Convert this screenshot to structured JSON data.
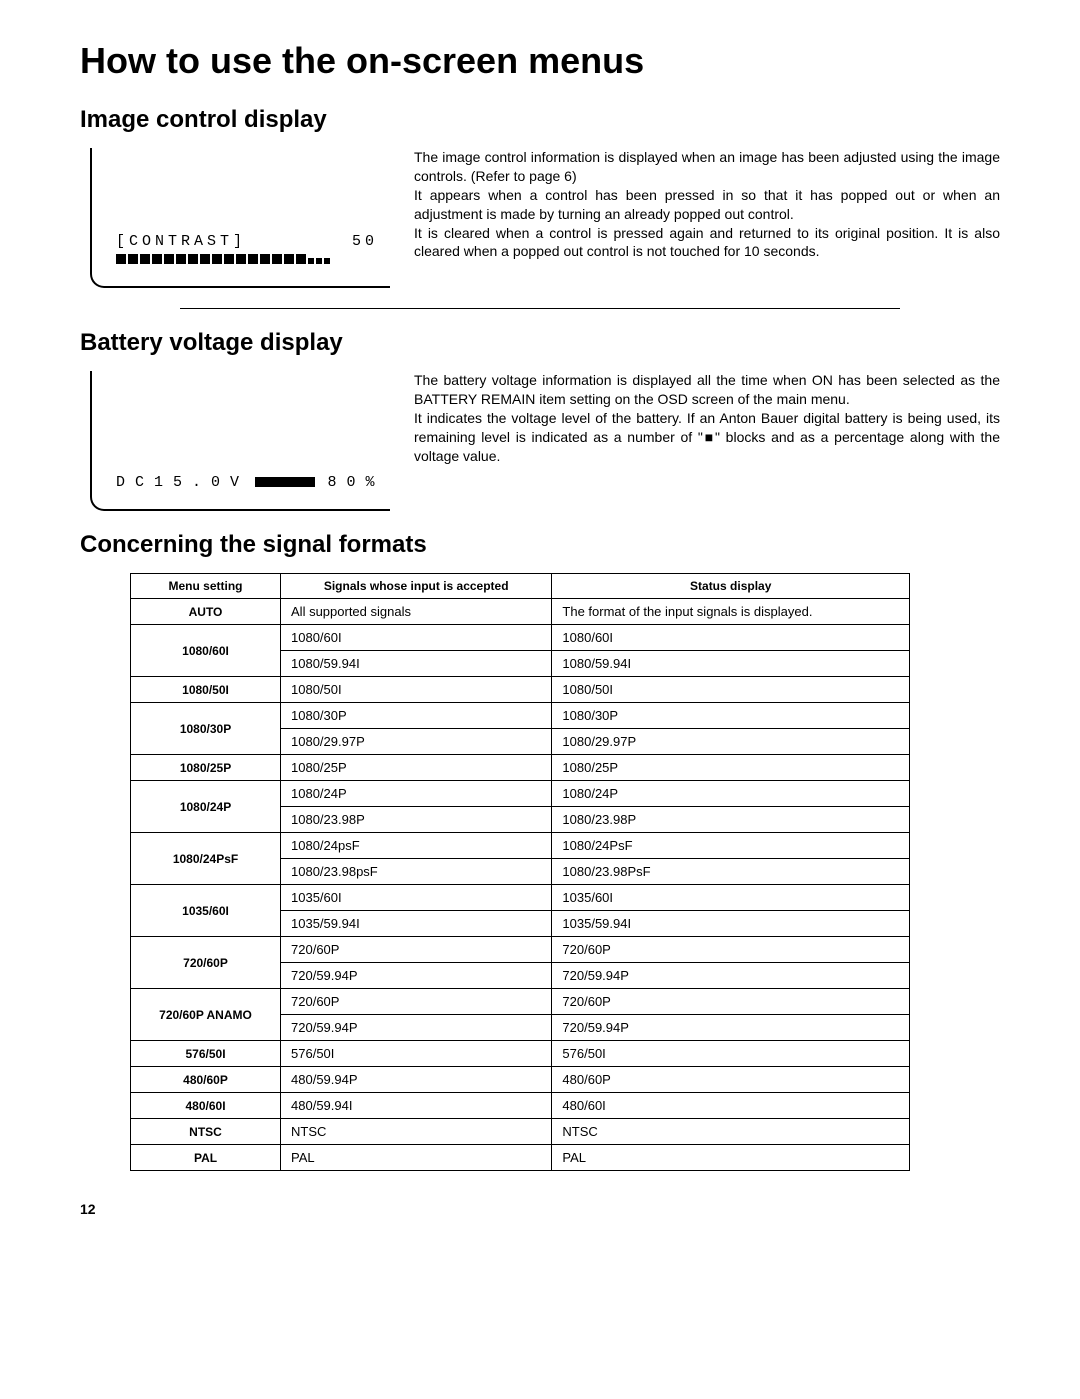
{
  "page": {
    "title": "How to use the on-screen menus",
    "number": "12"
  },
  "image_control": {
    "heading": "Image control display",
    "osd_label": "[CONTRAST]",
    "osd_value": "50",
    "filled_big_bars": 16,
    "small_bars": 3,
    "para1": "The image control information is displayed when an image has been adjusted using the image controls.  (Refer to page 6)",
    "para2": "It appears when a control has been pressed in so that it has popped out or when an adjustment is made by turning an already popped out control.",
    "para3": "It is cleared when a control is pressed again and returned to its original position.  It is also cleared when a popped out control is not touched for 10 seconds."
  },
  "battery": {
    "heading": "Battery voltage display",
    "osd_prefix": "DC15.0V",
    "osd_blocks": 6,
    "osd_suffix": "80%",
    "para1": "The battery voltage information is displayed all the time when ON has been selected as the BATTERY REMAIN item setting on the OSD screen of the main menu.",
    "para2": "It indicates the voltage level of the battery.  If an Anton Bauer digital battery is being used, its remaining level is indicated as a number of \"■\" blocks and as a percentage along with the voltage value."
  },
  "formats": {
    "heading": "Concerning the signal formats",
    "columns": [
      "Menu setting",
      "Signals whose input is accepted",
      "Status display"
    ],
    "rows": [
      {
        "menu": "AUTO",
        "span": 1,
        "cells": [
          [
            "All supported signals",
            "The format of the input signals is displayed."
          ]
        ]
      },
      {
        "menu": "1080/60I",
        "span": 2,
        "cells": [
          [
            "1080/60I",
            "1080/60I"
          ],
          [
            "1080/59.94I",
            "1080/59.94I"
          ]
        ]
      },
      {
        "menu": "1080/50I",
        "span": 1,
        "cells": [
          [
            "1080/50I",
            "1080/50I"
          ]
        ]
      },
      {
        "menu": "1080/30P",
        "span": 2,
        "cells": [
          [
            "1080/30P",
            "1080/30P"
          ],
          [
            "1080/29.97P",
            "1080/29.97P"
          ]
        ]
      },
      {
        "menu": "1080/25P",
        "span": 1,
        "cells": [
          [
            "1080/25P",
            "1080/25P"
          ]
        ]
      },
      {
        "menu": "1080/24P",
        "span": 2,
        "cells": [
          [
            "1080/24P",
            "1080/24P"
          ],
          [
            "1080/23.98P",
            "1080/23.98P"
          ]
        ]
      },
      {
        "menu": "1080/24PsF",
        "span": 2,
        "cells": [
          [
            "1080/24psF",
            "1080/24PsF"
          ],
          [
            "1080/23.98psF",
            "1080/23.98PsF"
          ]
        ]
      },
      {
        "menu": "1035/60I",
        "span": 2,
        "cells": [
          [
            "1035/60I",
            "1035/60I"
          ],
          [
            "1035/59.94I",
            "1035/59.94I"
          ]
        ]
      },
      {
        "menu": "720/60P",
        "span": 2,
        "cells": [
          [
            "720/60P",
            "720/60P"
          ],
          [
            "720/59.94P",
            "720/59.94P"
          ]
        ]
      },
      {
        "menu": "720/60P ANAMO",
        "span": 2,
        "cells": [
          [
            "720/60P",
            "720/60P"
          ],
          [
            "720/59.94P",
            "720/59.94P"
          ]
        ]
      },
      {
        "menu": "576/50I",
        "span": 1,
        "cells": [
          [
            "576/50I",
            "576/50I"
          ]
        ]
      },
      {
        "menu": "480/60P",
        "span": 1,
        "cells": [
          [
            "480/59.94P",
            "480/60P"
          ]
        ]
      },
      {
        "menu": "480/60I",
        "span": 1,
        "cells": [
          [
            "480/59.94I",
            "480/60I"
          ]
        ]
      },
      {
        "menu": "NTSC",
        "span": 1,
        "cells": [
          [
            "NTSC",
            "NTSC"
          ]
        ]
      },
      {
        "menu": "PAL",
        "span": 1,
        "cells": [
          [
            "PAL",
            "PAL"
          ]
        ]
      }
    ]
  }
}
